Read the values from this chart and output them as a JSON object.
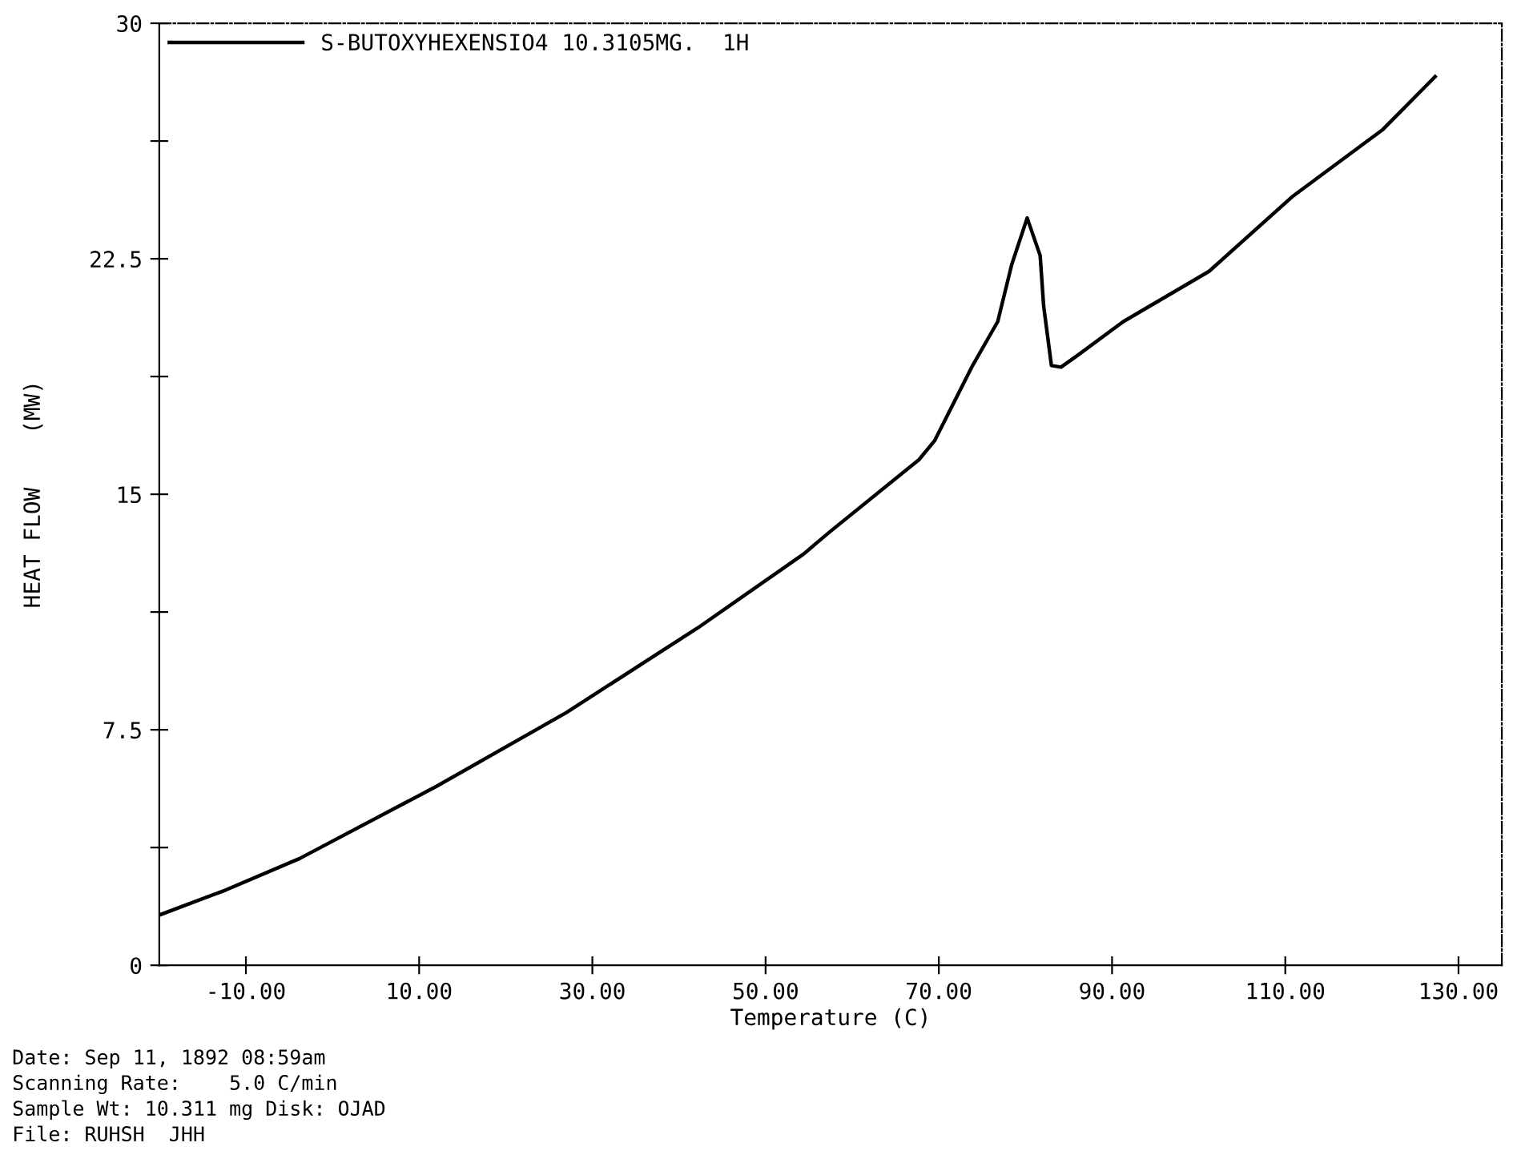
{
  "chart_data": {
    "type": "line",
    "xlabel": "Temperature (C)",
    "ylabel": "HEAT FLOW    (MW)",
    "xlim": [
      -20,
      135
    ],
    "ylim": [
      0,
      30
    ],
    "xticks": [
      {
        "value": -10,
        "label": "-10.00"
      },
      {
        "value": 10,
        "label": "10.00"
      },
      {
        "value": 30,
        "label": "30.00"
      },
      {
        "value": 50,
        "label": "50.00"
      },
      {
        "value": 70,
        "label": "70.00"
      },
      {
        "value": 90,
        "label": "90.00"
      },
      {
        "value": 110,
        "label": "110.00"
      },
      {
        "value": 130,
        "label": "130.00"
      }
    ],
    "yticks": [
      0,
      {
        "value": 3.75,
        "label": null
      },
      7.5,
      {
        "value": 11.25,
        "label": null
      },
      15,
      {
        "value": 18.75,
        "label": null
      },
      22.5,
      {
        "value": 26.25,
        "label": null
      },
      30
    ],
    "grid": false,
    "legend": "top left",
    "marker": "none",
    "line_style": "solid",
    "series": [
      {
        "name": "S-BUTOXYHEXENSIO4 10.3105MG.  1H",
        "color": "#000000",
        "x": [
          -20,
          -12.3,
          -3.8,
          12,
          27,
          42.2,
          54.4,
          57.4,
          67.7,
          69.5,
          73.9,
          76.8,
          78.4,
          80.2,
          81.7,
          82.1,
          83,
          84.1,
          85.9,
          91.3,
          101.2,
          110.9,
          121.2,
          127.3
        ],
        "values": [
          1.6,
          2.4,
          3.4,
          5.7,
          8.05,
          10.75,
          13.1,
          13.8,
          16.1,
          16.7,
          19.1,
          20.5,
          22.3,
          23.8,
          22.6,
          21,
          19.1,
          19.05,
          19.4,
          20.5,
          22.1,
          24.5,
          26.6,
          28.3
        ]
      }
    ],
    "annotations": [
      "Date: Sep 11, 1892 08:59am",
      "Scanning Rate:    5.0 C/min",
      "Sample Wt: 10.311 mg Disk: OJAD",
      "File: RUHSH  JHH"
    ]
  }
}
